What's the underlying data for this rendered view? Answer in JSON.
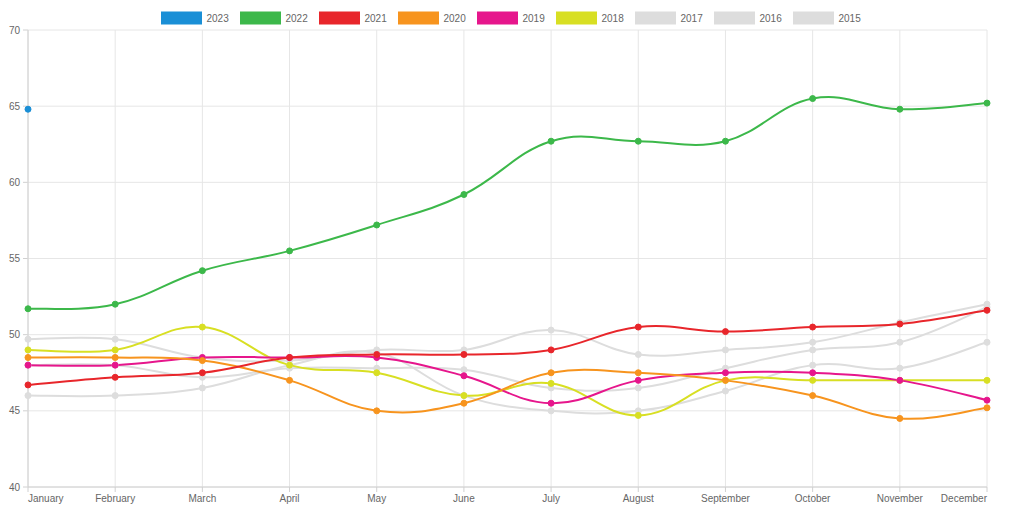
{
  "chart_data": {
    "type": "line",
    "categories": [
      "January",
      "February",
      "March",
      "April",
      "May",
      "June",
      "July",
      "August",
      "September",
      "October",
      "November",
      "December"
    ],
    "series": [
      {
        "name": "2023",
        "color": "#1a8fd6",
        "values": [
          64.8,
          null,
          null,
          null,
          null,
          null,
          null,
          null,
          null,
          null,
          null,
          null
        ]
      },
      {
        "name": "2022",
        "color": "#3cb84a",
        "values": [
          51.7,
          52.0,
          54.2,
          55.5,
          57.2,
          59.2,
          62.7,
          62.7,
          62.7,
          65.5,
          64.8,
          65.2
        ]
      },
      {
        "name": "2021",
        "color": "#e8262b",
        "values": [
          46.7,
          47.2,
          47.5,
          48.5,
          48.7,
          48.7,
          49.0,
          50.5,
          50.2,
          50.5,
          50.7,
          51.6
        ]
      },
      {
        "name": "2020",
        "color": "#f7941e",
        "values": [
          48.5,
          48.5,
          48.3,
          47.0,
          45.0,
          45.5,
          47.5,
          47.5,
          47.0,
          46.0,
          44.5,
          45.2
        ]
      },
      {
        "name": "2019",
        "color": "#e6168c",
        "values": [
          48.0,
          48.0,
          48.5,
          48.5,
          48.5,
          47.3,
          45.5,
          47.0,
          47.5,
          47.5,
          47.0,
          45.7
        ]
      },
      {
        "name": "2018",
        "color": "#d8df23",
        "values": [
          49.0,
          49.0,
          50.5,
          48.0,
          47.5,
          46.0,
          46.8,
          44.7,
          47.0,
          47.0,
          47.0,
          47.0
        ]
      },
      {
        "name": "2017",
        "color": "#dddddd",
        "values": [
          49.7,
          49.7,
          48.5,
          48.3,
          49.0,
          49.0,
          50.3,
          48.7,
          49.0,
          49.5,
          50.8,
          52.0
        ]
      },
      {
        "name": "2016",
        "color": "#dddddd",
        "values": [
          48.0,
          48.0,
          47.2,
          47.8,
          47.8,
          47.7,
          46.5,
          46.5,
          47.8,
          49.0,
          49.5,
          51.8
        ]
      },
      {
        "name": "2015",
        "color": "#dddddd",
        "values": [
          46.0,
          46.0,
          46.5,
          48.0,
          48.8,
          46.0,
          45.0,
          45.0,
          46.3,
          48.0,
          47.8,
          49.5
        ]
      }
    ],
    "ylim": [
      40,
      70
    ],
    "yticks": [
      40,
      45,
      50,
      55,
      60,
      65,
      70
    ],
    "grid": true,
    "legend": "top",
    "marker": "circle"
  }
}
